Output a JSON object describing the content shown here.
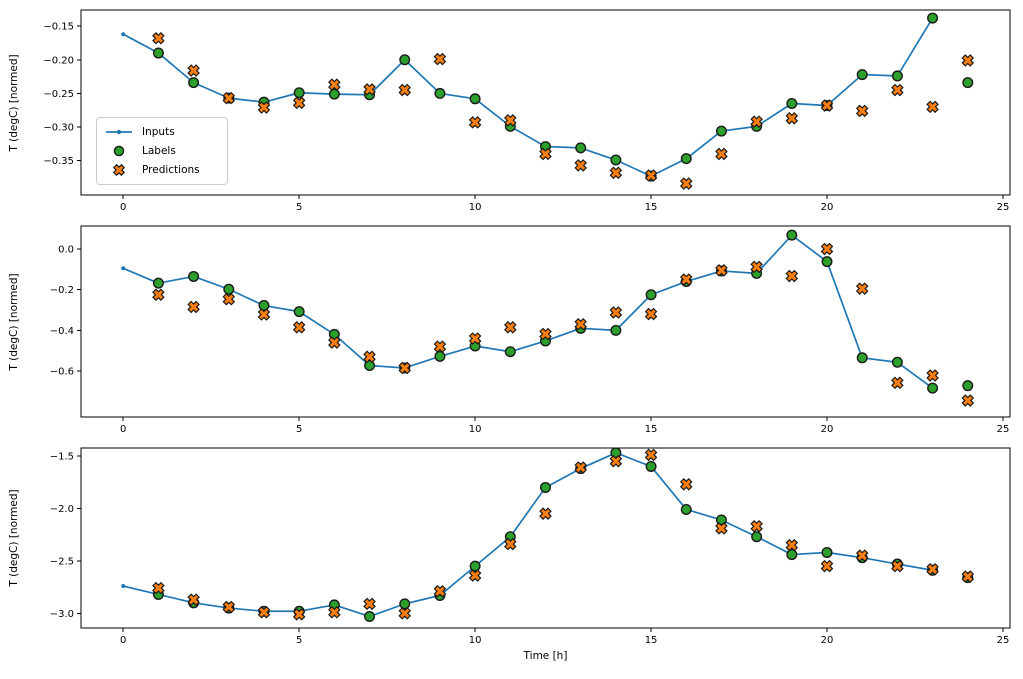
{
  "figure": {
    "xlabel": "Time [h]",
    "ylabel": "T (degC) [normed]",
    "colors": {
      "inputs": "#1f77b4",
      "labels": "#2ca02c",
      "predictions": "#ff7f0e",
      "marker_edge": "#1a1a1a",
      "spine": "#000000",
      "background": "#ffffff"
    },
    "legend": {
      "items": [
        {
          "key": "inputs",
          "label": "Inputs"
        },
        {
          "key": "labels",
          "label": "Labels"
        },
        {
          "key": "predictions",
          "label": "Predictions"
        }
      ]
    }
  },
  "chart_data": [
    {
      "type": "line+scatter",
      "panel": 1,
      "ylabel": "T (degC) [normed]",
      "xlim": [
        -1.2,
        25.2
      ],
      "ylim": [
        -0.401,
        -0.126
      ],
      "xticks": [
        0,
        5,
        10,
        15,
        20,
        25
      ],
      "ytick_values": [
        -0.15,
        -0.2,
        -0.25,
        -0.3,
        -0.35
      ],
      "ytick_labels": [
        "−0.15",
        "−0.20",
        "−0.25",
        "−0.30",
        "−0.35"
      ],
      "grid": false,
      "legend_position": "center-left",
      "series": {
        "inputs": {
          "x": [
            0,
            1,
            2,
            3,
            4,
            5,
            6,
            7,
            8,
            9,
            10,
            11,
            12,
            13,
            14,
            15,
            16,
            17,
            18,
            19,
            20,
            21,
            22,
            23
          ],
          "y": [
            -0.162,
            -0.19,
            -0.234,
            -0.257,
            -0.263,
            -0.249,
            -0.251,
            -0.252,
            -0.2,
            -0.25,
            -0.258,
            -0.299,
            -0.329,
            -0.331,
            -0.349,
            -0.373,
            -0.347,
            -0.306,
            -0.299,
            -0.265,
            -0.268,
            -0.222,
            -0.224,
            -0.138
          ]
        },
        "labels": {
          "x": [
            1,
            2,
            3,
            4,
            5,
            6,
            7,
            8,
            9,
            10,
            11,
            12,
            13,
            14,
            15,
            16,
            17,
            18,
            19,
            20,
            21,
            22,
            23,
            24
          ],
          "y": [
            -0.19,
            -0.234,
            -0.257,
            -0.263,
            -0.249,
            -0.251,
            -0.252,
            -0.2,
            -0.25,
            -0.258,
            -0.299,
            -0.329,
            -0.331,
            -0.349,
            -0.373,
            -0.347,
            -0.306,
            -0.299,
            -0.265,
            -0.268,
            -0.222,
            -0.224,
            -0.138,
            -0.234
          ]
        },
        "predictions": {
          "x": [
            1,
            2,
            3,
            4,
            5,
            6,
            7,
            8,
            9,
            10,
            11,
            12,
            13,
            14,
            15,
            16,
            17,
            18,
            19,
            20,
            21,
            22,
            23,
            24
          ],
          "y": [
            -0.168,
            -0.216,
            -0.257,
            -0.271,
            -0.264,
            -0.237,
            -0.244,
            -0.245,
            -0.199,
            -0.293,
            -0.29,
            -0.34,
            -0.357,
            -0.368,
            -0.372,
            -0.384,
            -0.34,
            -0.292,
            -0.287,
            -0.268,
            -0.276,
            -0.245,
            -0.27,
            -0.201
          ]
        }
      }
    },
    {
      "type": "line+scatter",
      "panel": 2,
      "ylabel": "T (degC) [normed]",
      "xlim": [
        -1.2,
        25.2
      ],
      "ylim": [
        -0.826,
        0.113
      ],
      "xticks": [
        0,
        5,
        10,
        15,
        20,
        25
      ],
      "ytick_values": [
        0.0,
        -0.2,
        -0.4,
        -0.6
      ],
      "ytick_labels": [
        "0.0",
        "−0.2",
        "−0.4",
        "−0.6"
      ],
      "grid": false,
      "series": {
        "inputs": {
          "x": [
            0,
            1,
            2,
            3,
            4,
            5,
            6,
            7,
            8,
            9,
            10,
            11,
            12,
            13,
            14,
            15,
            16,
            17,
            18,
            19,
            20,
            21,
            22,
            23
          ],
          "y": [
            -0.095,
            -0.168,
            -0.135,
            -0.198,
            -0.278,
            -0.308,
            -0.42,
            -0.573,
            -0.585,
            -0.528,
            -0.477,
            -0.505,
            -0.452,
            -0.39,
            -0.4,
            -0.225,
            -0.16,
            -0.108,
            -0.12,
            0.068,
            -0.062,
            -0.535,
            -0.557,
            -0.684
          ]
        },
        "labels": {
          "x": [
            1,
            2,
            3,
            4,
            5,
            6,
            7,
            8,
            9,
            10,
            11,
            12,
            13,
            14,
            15,
            16,
            17,
            18,
            19,
            20,
            21,
            22,
            23,
            24
          ],
          "y": [
            -0.168,
            -0.135,
            -0.198,
            -0.278,
            -0.308,
            -0.42,
            -0.573,
            -0.585,
            -0.528,
            -0.477,
            -0.505,
            -0.452,
            -0.39,
            -0.4,
            -0.225,
            -0.16,
            -0.108,
            -0.12,
            0.068,
            -0.062,
            -0.535,
            -0.557,
            -0.684,
            -0.672
          ]
        },
        "predictions": {
          "x": [
            1,
            2,
            3,
            4,
            5,
            6,
            7,
            8,
            9,
            10,
            11,
            12,
            13,
            14,
            15,
            16,
            17,
            18,
            19,
            20,
            21,
            22,
            23,
            24
          ],
          "y": [
            -0.225,
            -0.285,
            -0.247,
            -0.322,
            -0.385,
            -0.46,
            -0.53,
            -0.585,
            -0.48,
            -0.44,
            -0.385,
            -0.418,
            -0.37,
            -0.312,
            -0.32,
            -0.15,
            -0.105,
            -0.088,
            -0.133,
            0.0,
            -0.195,
            -0.658,
            -0.622,
            -0.745
          ]
        }
      }
    },
    {
      "type": "line+scatter",
      "panel": 3,
      "ylabel": "T (degC) [normed]",
      "xlabel": "Time [h]",
      "xlim": [
        -1.2,
        25.2
      ],
      "ylim": [
        -3.14,
        -1.424
      ],
      "xticks": [
        0,
        5,
        10,
        15,
        20,
        25
      ],
      "ytick_values": [
        -1.5,
        -2.0,
        -2.5,
        -3.0
      ],
      "ytick_labels": [
        "−1.5",
        "−2.0",
        "−2.5",
        "−3.0"
      ],
      "grid": false,
      "series": {
        "inputs": {
          "x": [
            0,
            1,
            2,
            3,
            4,
            5,
            6,
            7,
            8,
            9,
            10,
            11,
            12,
            13,
            14,
            15,
            16,
            17,
            18,
            19,
            20,
            21,
            22,
            23
          ],
          "y": [
            -2.74,
            -2.82,
            -2.9,
            -2.95,
            -2.98,
            -2.98,
            -2.92,
            -3.03,
            -2.91,
            -2.83,
            -2.55,
            -2.27,
            -1.8,
            -1.62,
            -1.47,
            -1.6,
            -2.01,
            -2.11,
            -2.27,
            -2.44,
            -2.42,
            -2.47,
            -2.53,
            -2.59
          ]
        },
        "labels": {
          "x": [
            1,
            2,
            3,
            4,
            5,
            6,
            7,
            8,
            9,
            10,
            11,
            12,
            13,
            14,
            15,
            16,
            17,
            18,
            19,
            20,
            21,
            22,
            23,
            24
          ],
          "y": [
            -2.82,
            -2.9,
            -2.95,
            -2.98,
            -2.98,
            -2.92,
            -3.03,
            -2.91,
            -2.83,
            -2.55,
            -2.27,
            -1.8,
            -1.62,
            -1.47,
            -1.6,
            -2.01,
            -2.11,
            -2.27,
            -2.44,
            -2.42,
            -2.47,
            -2.53,
            -2.59,
            -2.66
          ]
        },
        "predictions": {
          "x": [
            1,
            2,
            3,
            4,
            5,
            6,
            7,
            8,
            9,
            10,
            11,
            12,
            13,
            14,
            15,
            16,
            17,
            18,
            19,
            20,
            21,
            22,
            23,
            24
          ],
          "y": [
            -2.76,
            -2.87,
            -2.94,
            -2.99,
            -3.01,
            -2.99,
            -2.91,
            -3.0,
            -2.79,
            -2.64,
            -2.34,
            -2.05,
            -1.61,
            -1.55,
            -1.49,
            -1.77,
            -2.19,
            -2.17,
            -2.35,
            -2.55,
            -2.45,
            -2.55,
            -2.58,
            -2.65
          ]
        }
      }
    }
  ]
}
